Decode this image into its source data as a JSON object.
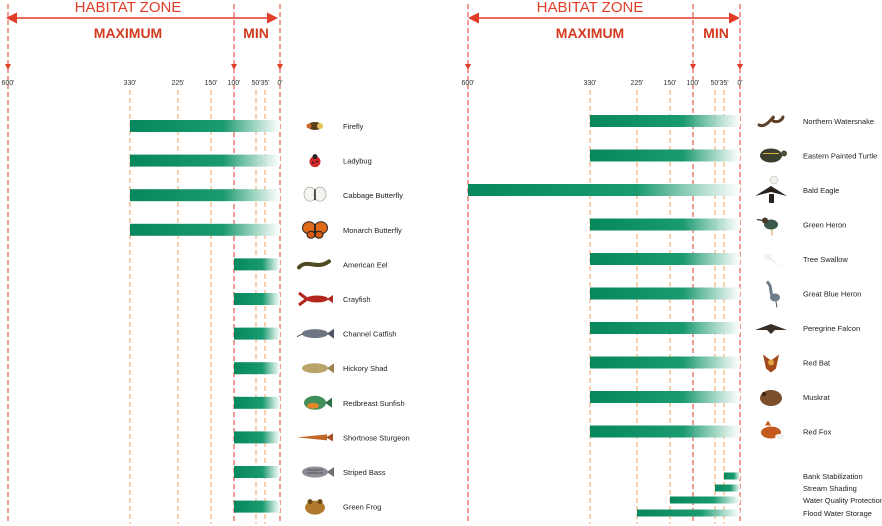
{
  "colors": {
    "accent": "#e23d28",
    "guide": "#f0a060",
    "bar": "#07875e",
    "bar_fade": "#ffffff"
  },
  "chart_data": [
    {
      "type": "bar",
      "orientation": "horizontal",
      "title": "HABITAT ZONE",
      "zone_labels": {
        "maximum": "MAXIMUM",
        "min": "MIN"
      },
      "tick_labels": [
        "600'",
        "330'",
        "225'",
        "150'",
        "100'",
        "50'",
        "35'",
        "0'"
      ],
      "tick_values": [
        600,
        330,
        225,
        150,
        100,
        50,
        35,
        0
      ],
      "xlim": [
        600,
        0
      ],
      "grid": true,
      "categories": [
        "Firefly",
        "Ladybug",
        "Cabbage Butterfly",
        "Monarch Butterfly",
        "American Eel",
        "Crayfish",
        "Channel Catfish",
        "Hickory Shad",
        "Redbreast Sunfish",
        "Shortnose Sturgeon",
        "Striped Bass",
        "Green Frog"
      ],
      "values": [
        330,
        330,
        330,
        330,
        100,
        100,
        100,
        100,
        100,
        100,
        100,
        100
      ],
      "icons": [
        "firefly-icon",
        "ladybug-icon",
        "cabbage-butterfly-icon",
        "monarch-butterfly-icon",
        "american-eel-icon",
        "crayfish-icon",
        "channel-catfish-icon",
        "hickory-shad-icon",
        "redbreast-sunfish-icon",
        "shortnose-sturgeon-icon",
        "striped-bass-icon",
        "green-frog-icon"
      ]
    },
    {
      "type": "bar",
      "orientation": "horizontal",
      "title": "HABITAT ZONE",
      "zone_labels": {
        "maximum": "MAXIMUM",
        "min": "MIN"
      },
      "tick_labels": [
        "600'",
        "330'",
        "225'",
        "150'",
        "100'",
        "50'",
        "35'",
        "0'"
      ],
      "tick_values": [
        600,
        330,
        225,
        150,
        100,
        50,
        35,
        0
      ],
      "xlim": [
        600,
        0
      ],
      "grid": true,
      "categories": [
        "Northern Watersnake",
        "Eastern Painted Turtle",
        "Bald Eagle",
        "Green Heron",
        "Tree Swallow",
        "Great Blue Heron",
        "Peregrine Falcon",
        "Red Bat",
        "Muskrat",
        "Red Fox"
      ],
      "values": [
        330,
        330,
        600,
        330,
        330,
        330,
        330,
        330,
        330,
        330
      ],
      "icons": [
        "northern-watersnake-icon",
        "eastern-painted-turtle-icon",
        "bald-eagle-icon",
        "green-heron-icon",
        "tree-swallow-icon",
        "great-blue-heron-icon",
        "peregrine-falcon-icon",
        "red-bat-icon",
        "muskrat-icon",
        "red-fox-icon"
      ],
      "functions": {
        "categories": [
          "Bank Stabilization",
          "Stream Shading",
          "Water Quality Protection",
          "Flood Water Storage"
        ],
        "values": [
          35,
          50,
          150,
          225
        ]
      }
    }
  ]
}
